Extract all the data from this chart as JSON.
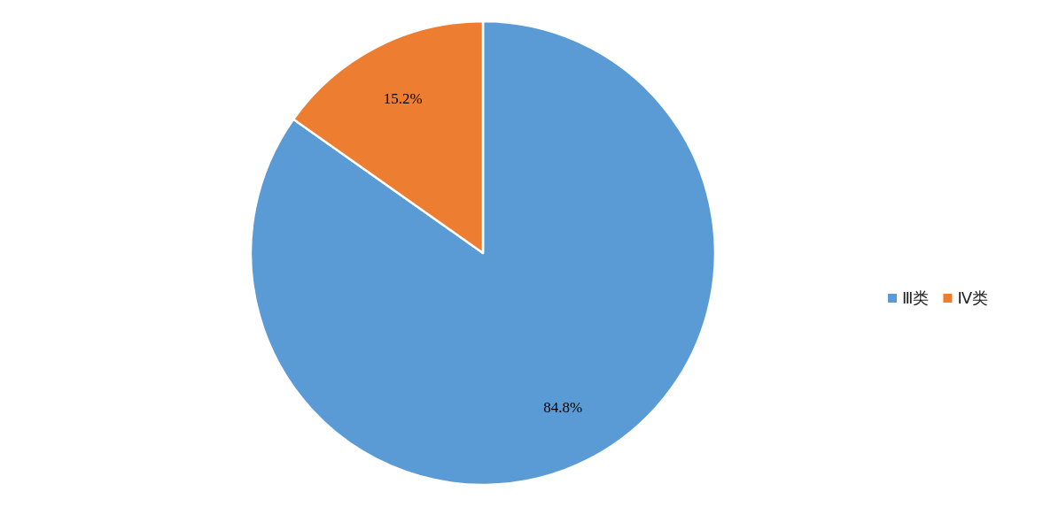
{
  "chart_data": {
    "type": "pie",
    "categories": [
      "Ⅲ类",
      "Ⅳ类"
    ],
    "values": [
      84.8,
      15.2
    ],
    "colors": [
      "#5b9bd5",
      "#ed7d31"
    ],
    "value_labels": [
      "84.8%",
      "15.2%"
    ],
    "legend": "right"
  }
}
